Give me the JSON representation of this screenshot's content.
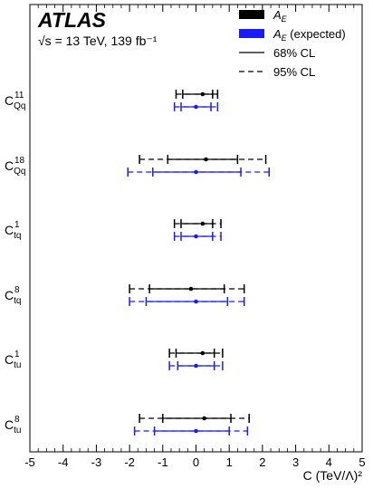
{
  "chart_data": {
    "type": "interval",
    "experiment": "ATLAS",
    "energy_label": "√s = 13 TeV, 139 fb⁻¹",
    "xlabel": "C (TeV/Λ)²",
    "xlim": [
      -5,
      5
    ],
    "xticks": [
      -5,
      -4,
      -3,
      -2,
      -1,
      0,
      1,
      2,
      3,
      4,
      5
    ],
    "legend": {
      "position": "top-right",
      "entries": [
        {
          "key": "observed",
          "label_main": "A",
          "label_sub": "E",
          "label_suffix": "",
          "color": "#000000",
          "style": "fill"
        },
        {
          "key": "expected",
          "label_main": "A",
          "label_sub": "E",
          "label_suffix": " (expected)",
          "color": "#1a1aff",
          "style": "fill"
        },
        {
          "key": "cl68",
          "label": "68% CL",
          "color": "#000000",
          "style": "solid"
        },
        {
          "key": "cl95",
          "label": "95% CL",
          "color": "#000000",
          "style": "dashed"
        }
      ]
    },
    "categories": [
      {
        "base": "C",
        "sub": "Qq",
        "sup": "11"
      },
      {
        "base": "C",
        "sub": "Qq",
        "sup": "18"
      },
      {
        "base": "C",
        "sub": "tq",
        "sup": "1"
      },
      {
        "base": "C",
        "sub": "tq",
        "sup": "8"
      },
      {
        "base": "C",
        "sub": "tu",
        "sup": "1"
      },
      {
        "base": "C",
        "sub": "tu",
        "sup": "8"
      }
    ],
    "series": [
      {
        "name": "A_E",
        "color": "#000000",
        "points": [
          {
            "central": 0.2,
            "cl68": [
              -0.4,
              0.5
            ],
            "cl95": [
              -0.6,
              0.65
            ]
          },
          {
            "central": 0.3,
            "cl68": [
              -0.85,
              1.25
            ],
            "cl95": [
              -1.7,
              2.1
            ]
          },
          {
            "central": 0.2,
            "cl68": [
              -0.45,
              0.5
            ],
            "cl95": [
              -0.65,
              0.75
            ]
          },
          {
            "central": -0.15,
            "cl68": [
              -1.4,
              0.85
            ],
            "cl95": [
              -2.0,
              1.45
            ]
          },
          {
            "central": 0.2,
            "cl68": [
              -0.6,
              0.55
            ],
            "cl95": [
              -0.8,
              0.8
            ]
          },
          {
            "central": 0.25,
            "cl68": [
              -1.0,
              1.05
            ],
            "cl95": [
              -1.7,
              1.6
            ]
          }
        ]
      },
      {
        "name": "A_E (expected)",
        "color": "#1a1aff",
        "points": [
          {
            "central": 0.0,
            "cl68": [
              -0.45,
              0.45
            ],
            "cl95": [
              -0.65,
              0.65
            ]
          },
          {
            "central": 0.0,
            "cl68": [
              -1.3,
              1.35
            ],
            "cl95": [
              -2.05,
              2.2
            ]
          },
          {
            "central": 0.0,
            "cl68": [
              -0.45,
              0.5
            ],
            "cl95": [
              -0.65,
              0.75
            ]
          },
          {
            "central": 0.0,
            "cl68": [
              -1.5,
              0.95
            ],
            "cl95": [
              -2.0,
              1.45
            ]
          },
          {
            "central": 0.0,
            "cl68": [
              -0.55,
              0.55
            ],
            "cl95": [
              -0.8,
              0.8
            ]
          },
          {
            "central": 0.0,
            "cl68": [
              -1.25,
              1.0
            ],
            "cl95": [
              -1.85,
              1.55
            ]
          }
        ]
      }
    ]
  }
}
